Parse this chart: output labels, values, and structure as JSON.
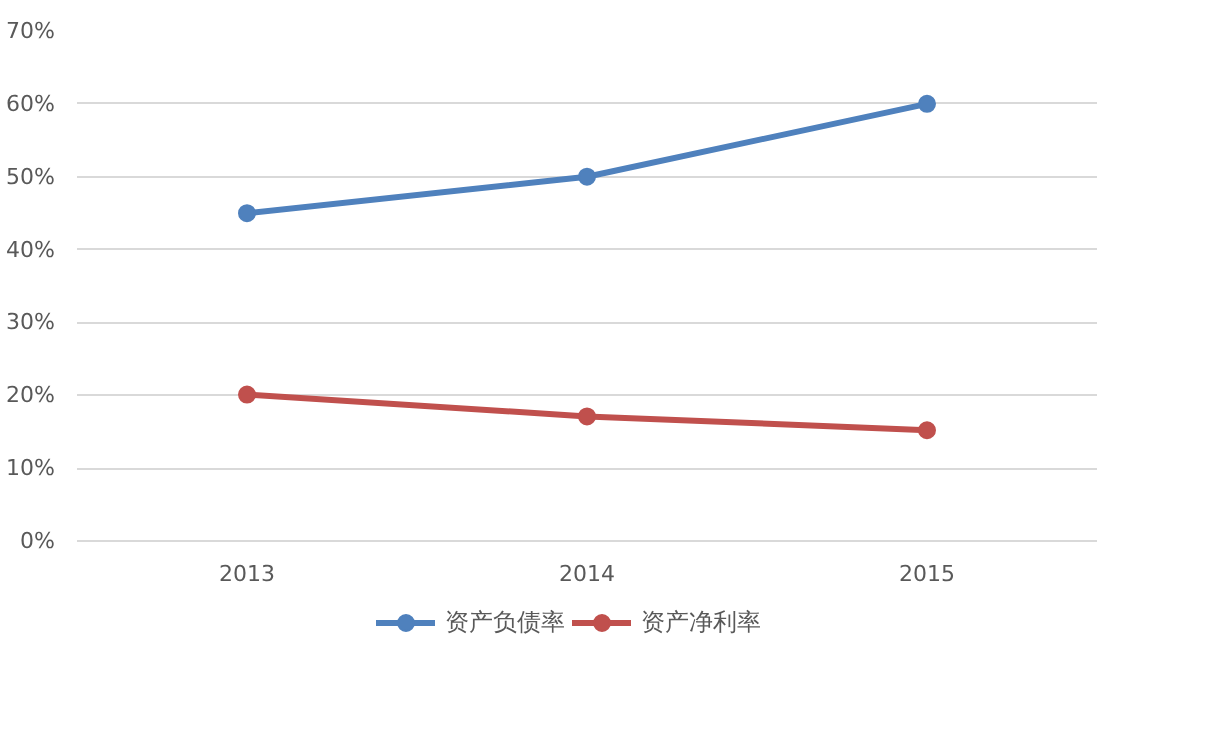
{
  "chart_data": {
    "type": "line",
    "categories": [
      "2013",
      "2014",
      "2015"
    ],
    "series": [
      {
        "name": "资产负债率",
        "color": "#4f81bd",
        "values": [
          45,
          50,
          60
        ]
      },
      {
        "name": "资产净利率",
        "color": "#c0504d",
        "values": [
          20.1,
          17.1,
          15.2
        ]
      }
    ],
    "ylim": [
      0,
      70
    ],
    "yticks": [
      {
        "value": 0,
        "label": "0%"
      },
      {
        "value": 10,
        "label": "10%"
      },
      {
        "value": 20,
        "label": "20%"
      },
      {
        "value": 30,
        "label": "30%"
      },
      {
        "value": 40,
        "label": "40%"
      },
      {
        "value": 50,
        "label": "50%"
      },
      {
        "value": 60,
        "label": "60%"
      },
      {
        "value": 70,
        "label": "70%"
      }
    ],
    "grid": "y",
    "legend": "bottom",
    "marker": "circle",
    "line_style": "solid"
  }
}
